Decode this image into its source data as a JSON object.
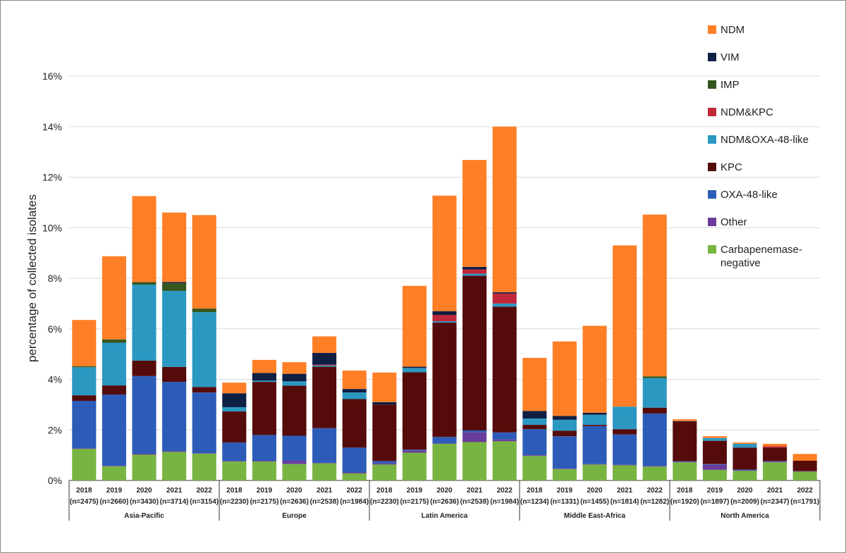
{
  "chart_data": {
    "type": "stacked_bar",
    "y_label": "percentage of collected isolates",
    "ylim": [
      0,
      16
    ],
    "yticks": [
      {
        "value": 0,
        "label": "0%"
      },
      {
        "value": 2,
        "label": "2%"
      },
      {
        "value": 4,
        "label": "4%"
      },
      {
        "value": 6,
        "label": "6%"
      },
      {
        "value": 8,
        "label": "8%"
      },
      {
        "value": 10,
        "label": "10%"
      },
      {
        "value": 12,
        "label": "12%"
      },
      {
        "value": 14,
        "label": "14%"
      },
      {
        "value": 16,
        "label": "16%"
      }
    ],
    "grid": true,
    "legend": "right",
    "categories": [
      [
        "Asia-Pacific",
        "2018",
        "(n=2475)"
      ],
      [
        "Asia-Pacific",
        "2019",
        "(n=2660)"
      ],
      [
        "Asia-Pacific",
        "2020",
        "(n=3430)"
      ],
      [
        "Asia-Pacific",
        "2021",
        "(n=3714)"
      ],
      [
        "Asia-Pacific",
        "2022",
        "(n=3154)"
      ],
      [
        "Europe",
        "2018",
        "(n=2230)"
      ],
      [
        "Europe",
        "2019",
        "(n=2175)"
      ],
      [
        "Europe",
        "2020",
        "(n=2636)"
      ],
      [
        "Europe",
        "2021",
        "(n=2538)"
      ],
      [
        "Europe",
        "2022",
        "(n=1984)"
      ],
      [
        "Latin America",
        "2018",
        "(n=2230)"
      ],
      [
        "Latin America",
        "2019",
        "(n=2175)"
      ],
      [
        "Latin America",
        "2020",
        "(n=2636)"
      ],
      [
        "Latin America",
        "2021",
        "(n=2538)"
      ],
      [
        "Latin America",
        "2022",
        "(n=1984)"
      ],
      [
        "Middle East-Africa",
        "2018",
        "(n=1234)"
      ],
      [
        "Middle East-Africa",
        "2019",
        "(n=1331)"
      ],
      [
        "Middle East-Africa",
        "2020",
        "(n=1455)"
      ],
      [
        "Middle East-Africa",
        "2021",
        "(n=1814)"
      ],
      [
        "Middle East-Africa",
        "2022",
        "(n=1282)"
      ],
      [
        "North America",
        "2018",
        "(n=1920)"
      ],
      [
        "North America",
        "2019",
        "(n=1897)"
      ],
      [
        "North America",
        "2020",
        "(n=2009)"
      ],
      [
        "North America",
        "2021",
        "(n=2347)"
      ],
      [
        "North America",
        "2022",
        "(n=1791)"
      ]
    ],
    "series": [
      {
        "name": "Carbapenemase-negative",
        "color": "#78b442",
        "values": [
          1.25,
          0.56,
          1.02,
          1.13,
          1.06,
          0.75,
          0.75,
          0.65,
          0.68,
          0.28,
          0.63,
          1.1,
          1.45,
          1.52,
          1.55,
          0.97,
          0.45,
          0.63,
          0.6,
          0.55,
          0.72,
          0.42,
          0.38,
          0.72,
          0.35
        ]
      },
      {
        "name": "Other",
        "color": "#6a3d9a",
        "values": [
          0.02,
          0.02,
          0.04,
          0.03,
          0.02,
          0.02,
          0.03,
          0.13,
          0.02,
          0.04,
          0.05,
          0.08,
          0.02,
          0.38,
          0.07,
          0.03,
          0.02,
          0.02,
          0.02,
          0.02,
          0.02,
          0.2,
          0.02,
          0.03,
          0.02
        ]
      },
      {
        "name": "OXA-48-like",
        "color": "#2d5cb8",
        "values": [
          1.88,
          2.82,
          3.07,
          2.74,
          2.4,
          0.73,
          1.02,
          0.99,
          1.37,
          0.98,
          0.09,
          0.04,
          0.25,
          0.08,
          0.28,
          1.03,
          1.28,
          1.5,
          1.2,
          2.08,
          0.02,
          0.03,
          0.03,
          0.02,
          0
        ]
      },
      {
        "name": "KPC",
        "color": "#560b0b",
        "values": [
          0.22,
          0.36,
          0.61,
          0.59,
          0.22,
          1.23,
          2.1,
          1.98,
          2.43,
          1.92,
          2.23,
          3.06,
          4.53,
          6.12,
          4.98,
          0.17,
          0.22,
          0.05,
          0.21,
          0.23,
          1.57,
          0.92,
          0.87,
          0.53,
          0.41
        ]
      },
      {
        "name": "NDM&OXA-48-like",
        "color": "#2b98c2",
        "values": [
          1.11,
          1.69,
          3.01,
          3.01,
          2.96,
          0.17,
          0.05,
          0.17,
          0.05,
          0.26,
          0,
          0.17,
          0.05,
          0.08,
          0.12,
          0.25,
          0.43,
          0.4,
          0.89,
          1.17,
          0,
          0.11,
          0.15,
          0,
          0
        ]
      },
      {
        "name": "NDM&KPC",
        "color": "#c0283a",
        "values": [
          0,
          0,
          0,
          0,
          0,
          0,
          0,
          0,
          0.03,
          0,
          0,
          0,
          0.25,
          0.17,
          0.4,
          0,
          0,
          0,
          0,
          0,
          0,
          0,
          0,
          0.05,
          0
        ]
      },
      {
        "name": "IMP",
        "color": "#35561c",
        "values": [
          0.04,
          0.13,
          0.1,
          0.3,
          0.14,
          0,
          0,
          0,
          0,
          0,
          0,
          0,
          0,
          0,
          0,
          0,
          0,
          0,
          0,
          0.07,
          0,
          0,
          0,
          0,
          0
        ]
      },
      {
        "name": "VIM",
        "color": "#0e1f44",
        "values": [
          0,
          0,
          0,
          0.05,
          0,
          0.55,
          0.3,
          0.3,
          0.47,
          0.14,
          0.1,
          0.05,
          0.15,
          0.1,
          0.05,
          0.3,
          0.15,
          0.08,
          0,
          0,
          0.02,
          0,
          0,
          0,
          0
        ]
      },
      {
        "name": "NDM",
        "color": "#ff7f27",
        "values": [
          1.83,
          3.29,
          3.4,
          2.75,
          3.7,
          0.42,
          0.52,
          0.46,
          0.65,
          0.73,
          1.17,
          3.2,
          4.57,
          4.23,
          6.55,
          2.1,
          2.95,
          3.44,
          6.38,
          6.4,
          0.07,
          0.07,
          0.05,
          0.1,
          0.27
        ]
      }
    ]
  }
}
